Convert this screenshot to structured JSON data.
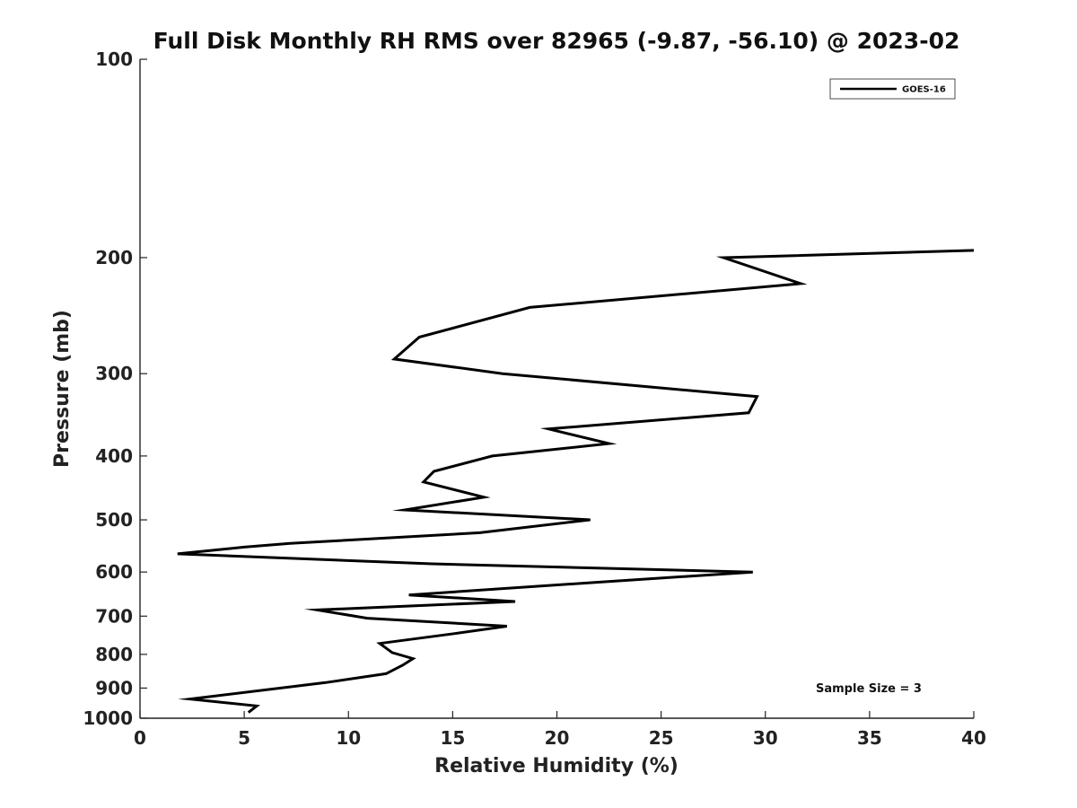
{
  "chart_data": {
    "type": "line",
    "title": "Full Disk Monthly RH RMS over 82965 (-9.87, -56.10) @ 2023-02",
    "xlabel": "Relative Humidity (%)",
    "ylabel": "Pressure (mb)",
    "xlim": [
      0,
      40
    ],
    "ylim": [
      100,
      1000
    ],
    "y_scale": "log",
    "y_inverted": true,
    "x_ticks": [
      0,
      5,
      10,
      15,
      20,
      25,
      30,
      35,
      40
    ],
    "x_tick_labels": [
      "0",
      "5",
      "10",
      "15",
      "20",
      "25",
      "30",
      "35",
      "40"
    ],
    "y_ticks": [
      100,
      200,
      300,
      400,
      500,
      600,
      700,
      800,
      900,
      1000
    ],
    "y_tick_labels": [
      "100",
      "200",
      "300",
      "400",
      "500",
      "600",
      "700",
      "800",
      "900",
      "1000"
    ],
    "grid": false,
    "legend_position": "top-right",
    "series": [
      {
        "name": "GOES-16",
        "color": "#000000",
        "points": [
          {
            "x": 40.0,
            "y": 195
          },
          {
            "x": 28.0,
            "y": 200
          },
          {
            "x": 31.7,
            "y": 219
          },
          {
            "x": 18.7,
            "y": 238
          },
          {
            "x": 13.4,
            "y": 264
          },
          {
            "x": 12.2,
            "y": 285
          },
          {
            "x": 17.4,
            "y": 300
          },
          {
            "x": 29.6,
            "y": 325
          },
          {
            "x": 29.2,
            "y": 344
          },
          {
            "x": 19.6,
            "y": 364
          },
          {
            "x": 22.5,
            "y": 383
          },
          {
            "x": 16.9,
            "y": 400
          },
          {
            "x": 14.1,
            "y": 422
          },
          {
            "x": 13.6,
            "y": 438
          },
          {
            "x": 16.5,
            "y": 462
          },
          {
            "x": 12.7,
            "y": 483
          },
          {
            "x": 21.6,
            "y": 500
          },
          {
            "x": 16.3,
            "y": 523
          },
          {
            "x": 7.2,
            "y": 543
          },
          {
            "x": 5.0,
            "y": 550
          },
          {
            "x": 1.8,
            "y": 563
          },
          {
            "x": 14.0,
            "y": 583
          },
          {
            "x": 29.4,
            "y": 600
          },
          {
            "x": 21.9,
            "y": 622
          },
          {
            "x": 12.9,
            "y": 650
          },
          {
            "x": 18.0,
            "y": 665
          },
          {
            "x": 8.5,
            "y": 685
          },
          {
            "x": 10.9,
            "y": 705
          },
          {
            "x": 17.6,
            "y": 725
          },
          {
            "x": 15.1,
            "y": 744
          },
          {
            "x": 11.5,
            "y": 770
          },
          {
            "x": 12.1,
            "y": 795
          },
          {
            "x": 13.1,
            "y": 812
          },
          {
            "x": 12.6,
            "y": 831
          },
          {
            "x": 11.8,
            "y": 856
          },
          {
            "x": 8.9,
            "y": 883
          },
          {
            "x": 2.4,
            "y": 935
          },
          {
            "x": 5.6,
            "y": 958
          },
          {
            "x": 5.2,
            "y": 980
          }
        ]
      }
    ],
    "annotations": [
      "Sample Size = 3"
    ]
  }
}
